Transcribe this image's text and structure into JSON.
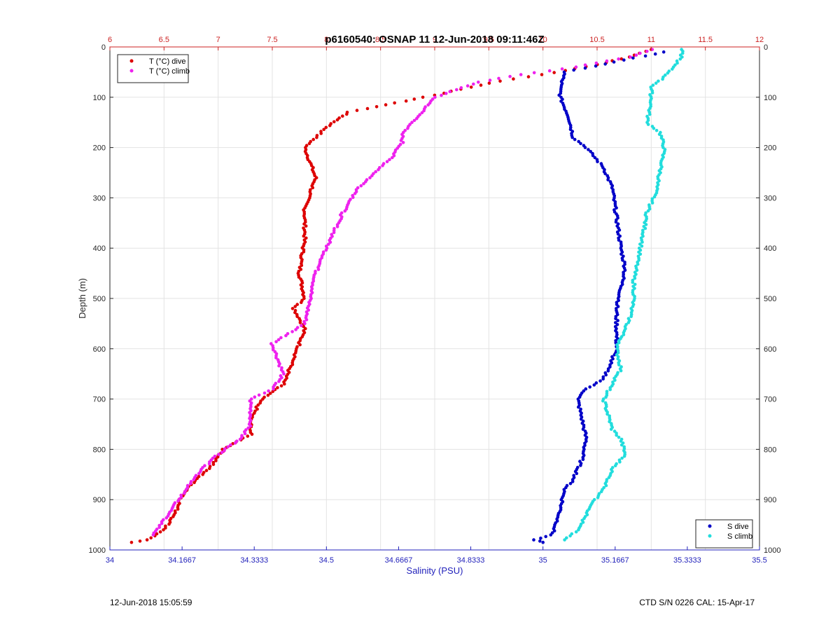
{
  "footer": {
    "left": "12-Jun-2018 15:05:59",
    "right": "CTD S/N 0226  CAL: 15-Apr-17"
  },
  "chart_data": {
    "type": "scatter",
    "title": "p6160540: OSNAP 11 12-Jun-2018 09:11:46Z",
    "ylabel": "Depth (m)",
    "xlabel_bottom": "Salinity (PSU)",
    "xlabel_top": "",
    "y_reversed": true,
    "ylim": [
      0,
      1000
    ],
    "yticks": [
      "0",
      "100",
      "200",
      "300",
      "400",
      "500",
      "600",
      "700",
      "800",
      "900",
      "1000"
    ],
    "xlim_top": [
      6,
      12
    ],
    "xticks_top": [
      "6",
      "6.5",
      "7",
      "7.5",
      "8",
      "8.5",
      "9",
      "9.5",
      "10",
      "10.5",
      "11",
      "11.5",
      "12"
    ],
    "xlim_bottom": [
      34,
      35.5
    ],
    "xticks_bottom": [
      "34",
      "34.1667",
      "34.3333",
      "34.5",
      "34.6667",
      "34.8333",
      "35",
      "35.1667",
      "35.3333",
      "35.5"
    ],
    "grid": true,
    "colors": {
      "top_axis": "#cc2222",
      "bottom_axis": "#2222bb",
      "t_dive": "#dd0000",
      "t_climb": "#ee22ee",
      "s_dive": "#0000c8",
      "s_climb": "#22dddd"
    },
    "legends": [
      {
        "placement": "top-left",
        "entries": [
          "T (°C) dive",
          "T (°C) climb"
        ]
      },
      {
        "placement": "bottom-right",
        "entries": [
          "S dive",
          "S climb"
        ]
      }
    ],
    "series": [
      {
        "name": "T (°C) dive",
        "axis": "top",
        "points": [
          [
            11.0,
            5
          ],
          [
            10.8,
            20
          ],
          [
            10.5,
            35
          ],
          [
            10.0,
            55
          ],
          [
            9.6,
            68
          ],
          [
            8.9,
            100
          ],
          [
            8.2,
            130
          ],
          [
            8.0,
            160
          ],
          [
            7.8,
            200
          ],
          [
            7.9,
            260
          ],
          [
            7.8,
            320
          ],
          [
            7.8,
            380
          ],
          [
            7.75,
            450
          ],
          [
            7.8,
            500
          ],
          [
            7.7,
            520
          ],
          [
            7.8,
            560
          ],
          [
            7.7,
            620
          ],
          [
            7.6,
            670
          ],
          [
            7.4,
            700
          ],
          [
            7.3,
            740
          ],
          [
            7.3,
            770
          ],
          [
            7.05,
            800
          ],
          [
            6.95,
            830
          ],
          [
            6.75,
            870
          ],
          [
            6.65,
            900
          ],
          [
            6.6,
            930
          ],
          [
            6.5,
            960
          ],
          [
            6.35,
            980
          ],
          [
            6.2,
            985
          ]
        ]
      },
      {
        "name": "T (°C) climb",
        "axis": "top",
        "points": [
          [
            11.0,
            5
          ],
          [
            10.8,
            20
          ],
          [
            10.3,
            40
          ],
          [
            9.8,
            55
          ],
          [
            9.4,
            70
          ],
          [
            9.0,
            100
          ],
          [
            8.8,
            150
          ],
          [
            8.7,
            170
          ],
          [
            8.7,
            190
          ],
          [
            8.6,
            220
          ],
          [
            8.3,
            280
          ],
          [
            8.15,
            330
          ],
          [
            8.0,
            400
          ],
          [
            7.9,
            450
          ],
          [
            7.85,
            500
          ],
          [
            7.8,
            550
          ],
          [
            7.5,
            590
          ],
          [
            7.6,
            650
          ],
          [
            7.5,
            680
          ],
          [
            7.3,
            700
          ],
          [
            7.3,
            750
          ],
          [
            7.2,
            780
          ],
          [
            7.0,
            810
          ],
          [
            6.85,
            840
          ],
          [
            6.7,
            880
          ],
          [
            6.6,
            910
          ],
          [
            6.5,
            940
          ],
          [
            6.4,
            970
          ]
        ]
      },
      {
        "name": "S dive",
        "axis": "bottom",
        "points": [
          [
            35.28,
            10
          ],
          [
            35.05,
            50
          ],
          [
            35.04,
            80
          ],
          [
            35.04,
            100
          ],
          [
            35.06,
            140
          ],
          [
            35.07,
            180
          ],
          [
            35.1,
            200
          ],
          [
            35.14,
            240
          ],
          [
            35.16,
            280
          ],
          [
            35.17,
            340
          ],
          [
            35.18,
            400
          ],
          [
            35.19,
            440
          ],
          [
            35.18,
            480
          ],
          [
            35.17,
            520
          ],
          [
            35.17,
            560
          ],
          [
            35.17,
            600
          ],
          [
            35.15,
            640
          ],
          [
            35.14,
            660
          ],
          [
            35.1,
            680
          ],
          [
            35.08,
            700
          ],
          [
            35.09,
            740
          ],
          [
            35.1,
            780
          ],
          [
            35.09,
            820
          ],
          [
            35.07,
            860
          ],
          [
            35.05,
            880
          ],
          [
            35.04,
            920
          ],
          [
            35.03,
            950
          ],
          [
            35.02,
            970
          ],
          [
            34.98,
            980
          ],
          [
            35.0,
            985
          ]
        ]
      },
      {
        "name": "S climb",
        "axis": "bottom",
        "points": [
          [
            35.32,
            5
          ],
          [
            35.32,
            20
          ],
          [
            35.3,
            40
          ],
          [
            35.28,
            60
          ],
          [
            35.25,
            80
          ],
          [
            35.25,
            110
          ],
          [
            35.24,
            150
          ],
          [
            35.27,
            170
          ],
          [
            35.28,
            200
          ],
          [
            35.27,
            250
          ],
          [
            35.26,
            290
          ],
          [
            35.24,
            330
          ],
          [
            35.23,
            380
          ],
          [
            35.22,
            420
          ],
          [
            35.21,
            460
          ],
          [
            35.21,
            500
          ],
          [
            35.2,
            540
          ],
          [
            35.18,
            580
          ],
          [
            35.17,
            600
          ],
          [
            35.18,
            640
          ],
          [
            35.16,
            670
          ],
          [
            35.14,
            700
          ],
          [
            35.15,
            730
          ],
          [
            35.16,
            760
          ],
          [
            35.18,
            780
          ],
          [
            35.19,
            810
          ],
          [
            35.16,
            840
          ],
          [
            35.14,
            880
          ],
          [
            35.12,
            900
          ],
          [
            35.1,
            930
          ],
          [
            35.08,
            960
          ],
          [
            35.05,
            980
          ]
        ]
      }
    ]
  }
}
